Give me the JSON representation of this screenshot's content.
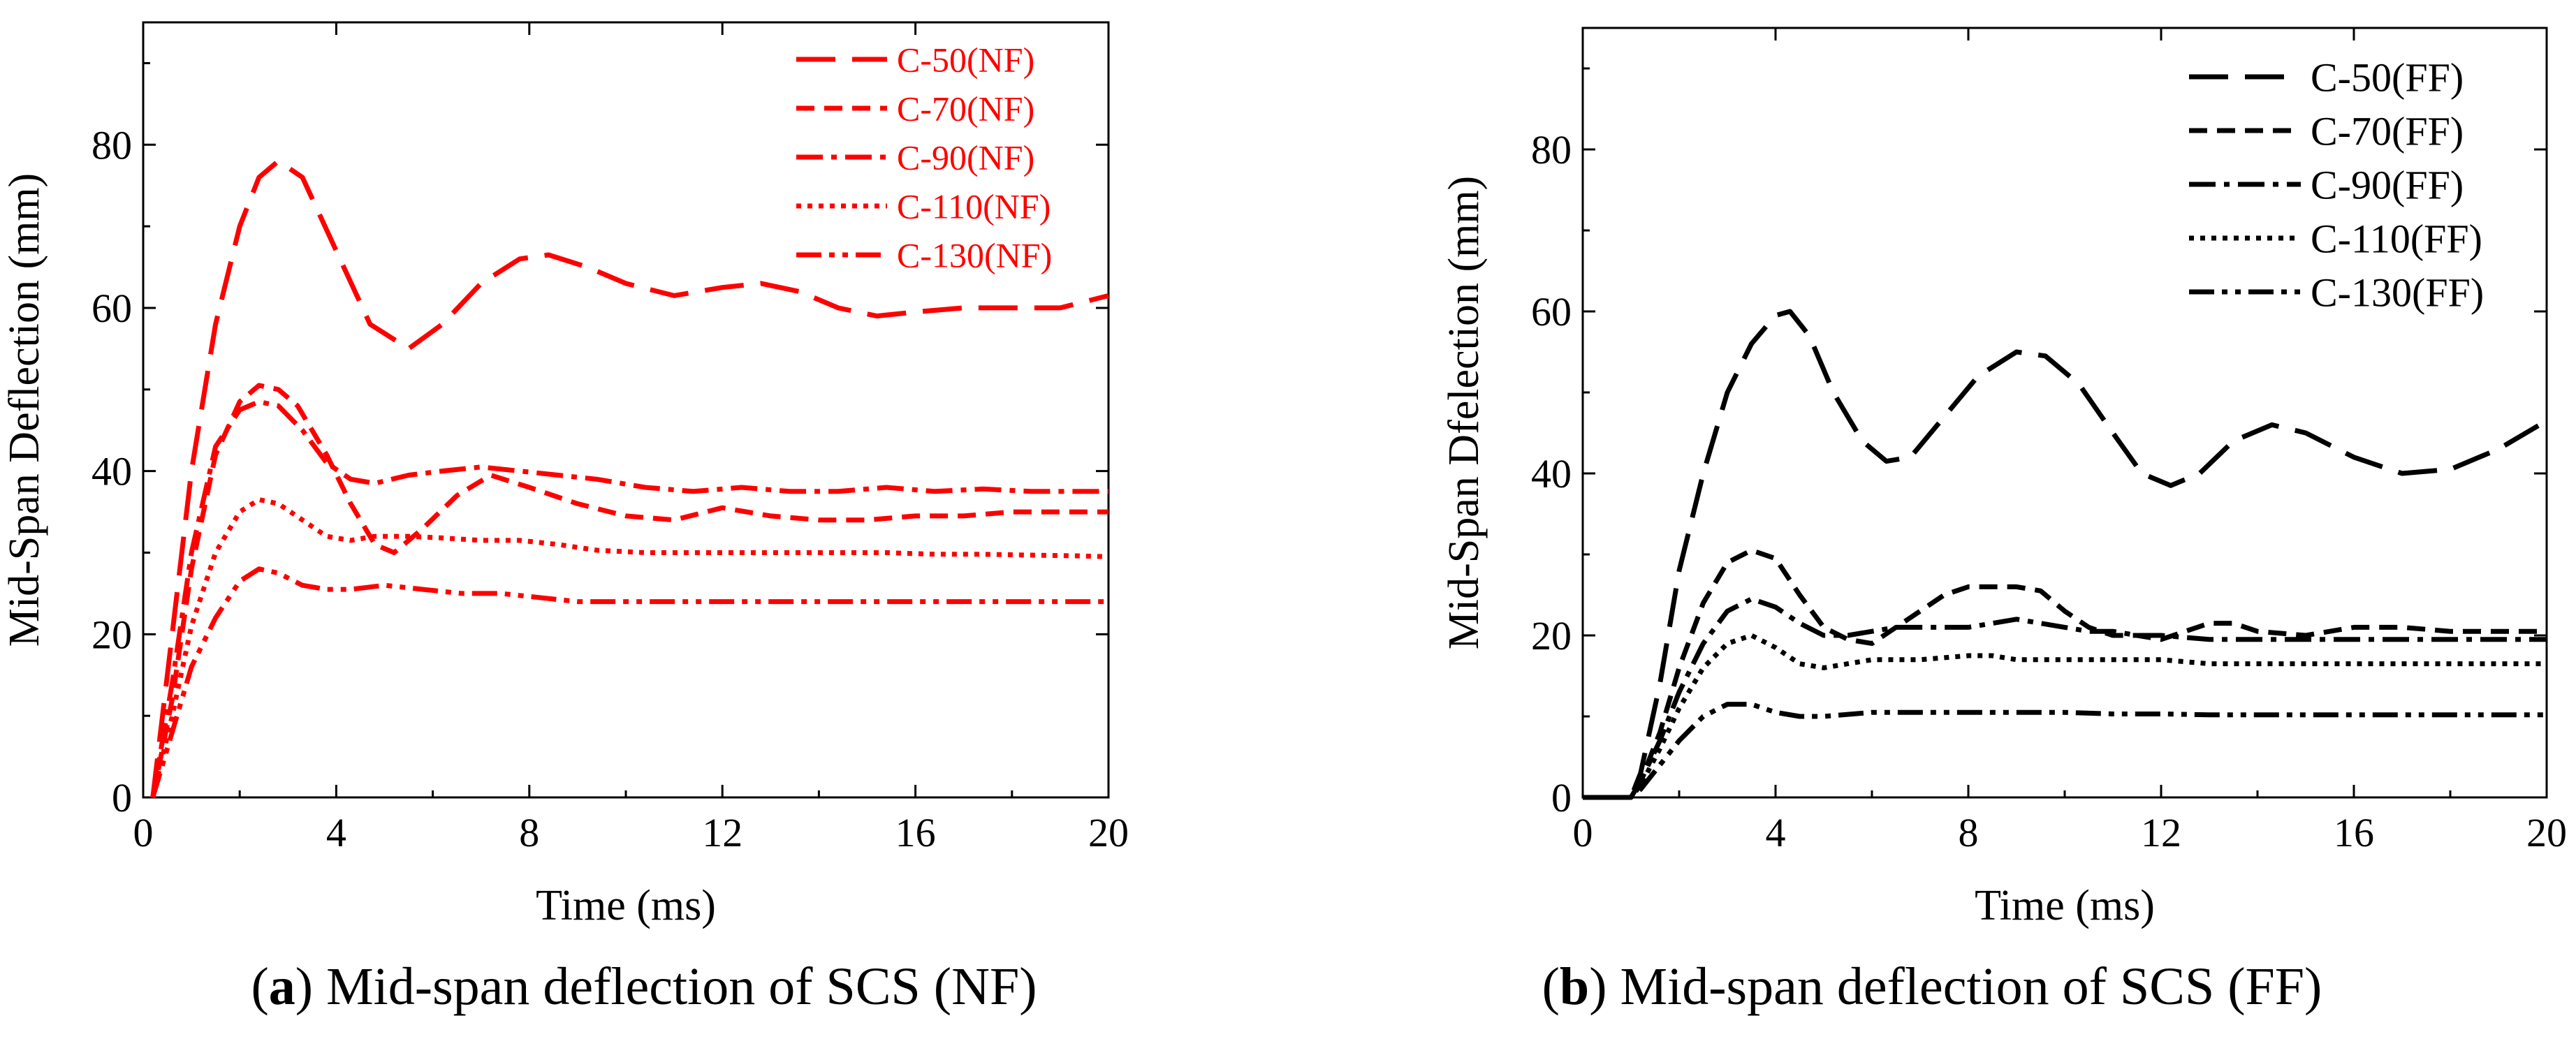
{
  "chart_data": [
    {
      "type": "line",
      "id": "a",
      "color": "#ff0000",
      "xlabel": "Time (ms)",
      "ylabel": "Mid-Span Deflection (mm)",
      "xlim": [
        0,
        20
      ],
      "ylim": [
        0,
        95
      ],
      "xticks": [
        "0",
        "4",
        "8",
        "12",
        "16",
        "20"
      ],
      "yticks": [
        "0",
        "20",
        "40",
        "60",
        "80"
      ],
      "legend_position": "top-right",
      "caption": {
        "tag": "a",
        "text": "Mid-span deflection of SCS (NF)"
      },
      "series": [
        {
          "name": "C-50(NF)",
          "style": "longdash",
          "x": [
            0.2,
            0.6,
            1.0,
            1.5,
            2.0,
            2.4,
            2.8,
            3.3,
            4.0,
            4.7,
            5.5,
            6.2,
            7.0,
            7.8,
            8.4,
            9.2,
            10.0,
            11.0,
            12.0,
            12.8,
            13.6,
            14.4,
            15.2,
            16.0,
            17.0,
            18.0,
            19.0,
            20.0
          ],
          "y": [
            0,
            20,
            40,
            58,
            70,
            76,
            78,
            76,
            67,
            58,
            55,
            58,
            63,
            66,
            66.5,
            65,
            63,
            61.5,
            62.5,
            63,
            62,
            60,
            59,
            59.5,
            60,
            60,
            60,
            61.5
          ]
        },
        {
          "name": "C-70(NF)",
          "style": "dash",
          "x": [
            0.2,
            0.6,
            1.0,
            1.5,
            2.0,
            2.4,
            2.8,
            3.2,
            3.8,
            4.3,
            4.8,
            5.2,
            5.8,
            6.5,
            7.2,
            8.0,
            9.0,
            10.0,
            11.0,
            12.0,
            13.0,
            14.0,
            15.0,
            16.0,
            17.0,
            18.0,
            19.0,
            20.0
          ],
          "y": [
            0,
            12,
            28,
            42,
            48.5,
            50.5,
            50,
            48,
            42,
            36,
            31,
            30,
            33,
            37,
            39.5,
            38,
            36,
            34.5,
            34,
            35.5,
            34.5,
            34,
            34,
            34.5,
            34.5,
            35,
            35,
            35
          ]
        },
        {
          "name": "C-90(NF)",
          "style": "dashdot",
          "x": [
            0.2,
            0.6,
            1.0,
            1.5,
            2.0,
            2.4,
            2.8,
            3.3,
            3.8,
            4.3,
            4.8,
            5.5,
            6.2,
            7.0,
            7.8,
            8.6,
            9.4,
            10.4,
            11.4,
            12.4,
            13.4,
            14.4,
            15.4,
            16.4,
            17.4,
            18.4,
            19.4,
            20.0
          ],
          "y": [
            0,
            14,
            30,
            43,
            47.5,
            48.5,
            48,
            45,
            41,
            39,
            38.5,
            39.5,
            40,
            40.5,
            40,
            39.5,
            39,
            38,
            37.5,
            38,
            37.5,
            37.5,
            38,
            37.5,
            37.8,
            37.5,
            37.5,
            37.5
          ]
        },
        {
          "name": "C-110(NF)",
          "style": "dot",
          "x": [
            0.2,
            0.6,
            1.0,
            1.5,
            2.0,
            2.4,
            2.8,
            3.3,
            3.8,
            4.3,
            4.8,
            5.5,
            6.2,
            7.0,
            7.8,
            8.6,
            9.4,
            10.4,
            11.4,
            12.4,
            13.4,
            14.4,
            15.4,
            16.4,
            17.4,
            18.4,
            19.4,
            20.0
          ],
          "y": [
            0,
            10,
            21,
            30,
            35,
            36.5,
            36,
            34,
            32,
            31.5,
            32,
            32,
            31.8,
            31.5,
            31.5,
            31,
            30.3,
            30,
            30,
            30,
            30,
            30,
            30,
            29.8,
            29.8,
            29.7,
            29.6,
            29.5
          ]
        },
        {
          "name": "C-130(NF)",
          "style": "dashdotdot",
          "x": [
            0.2,
            0.6,
            1.0,
            1.5,
            2.0,
            2.4,
            2.8,
            3.3,
            3.8,
            4.3,
            5.0,
            5.8,
            6.6,
            7.4,
            8.2,
            9.0,
            10.0,
            11.0,
            12.0,
            13.0,
            14.0,
            15.0,
            16.0,
            17.0,
            18.0,
            19.0,
            20.0
          ],
          "y": [
            0,
            8,
            16,
            22,
            26.5,
            28,
            27.5,
            26,
            25.5,
            25.5,
            26,
            25.5,
            25,
            25,
            24.5,
            24,
            24,
            24,
            24,
            24,
            24,
            24,
            24,
            24,
            24,
            24,
            24
          ]
        }
      ]
    },
    {
      "type": "line",
      "id": "b",
      "color": "#000000",
      "xlabel": "Time (ms)",
      "ylabel": "Mid-Span Dfelection (mm)",
      "xlim": [
        0,
        20
      ],
      "ylim": [
        0,
        95
      ],
      "xticks": [
        "0",
        "4",
        "8",
        "12",
        "16",
        "20"
      ],
      "yticks": [
        "0",
        "20",
        "40",
        "60",
        "80"
      ],
      "legend_position": "top-right",
      "caption": {
        "tag": "b",
        "text": "Mid-span deflection of SCS (FF)"
      },
      "series": [
        {
          "name": "C-50(FF)",
          "style": "longdash",
          "x": [
            0,
            1.0,
            1.2,
            1.6,
            2.0,
            2.5,
            3.0,
            3.5,
            4.0,
            4.3,
            4.7,
            5.2,
            5.8,
            6.3,
            6.8,
            7.5,
            8.2,
            9.0,
            9.6,
            10.3,
            11.0,
            11.6,
            12.2,
            12.8,
            13.5,
            14.3,
            15.0,
            16.0,
            17.0,
            18.0,
            19.0,
            20.0
          ],
          "y": [
            0,
            0,
            3,
            14,
            28,
            40,
            50,
            56,
            59.5,
            60,
            57,
            50,
            44,
            41.5,
            42,
            47,
            52,
            55,
            54.5,
            51,
            45,
            40,
            38.5,
            40,
            44,
            46,
            45,
            42,
            40,
            40.5,
            43,
            46.5
          ]
        },
        {
          "name": "C-70(FF)",
          "style": "dash",
          "x": [
            0,
            1.0,
            1.2,
            1.6,
            2.0,
            2.5,
            3.0,
            3.5,
            4.0,
            4.5,
            5.0,
            5.5,
            6.0,
            6.5,
            7.0,
            7.5,
            8.0,
            8.5,
            9.0,
            9.5,
            10.0,
            10.5,
            11.0,
            11.5,
            12.0,
            12.5,
            13.0,
            13.5,
            14.0,
            15.0,
            16.0,
            17.0,
            18.0,
            19.0,
            20.0
          ],
          "y": [
            0,
            0,
            2,
            8,
            16,
            24,
            29,
            30.5,
            29.5,
            25,
            21,
            19.5,
            19,
            21,
            23,
            25,
            26,
            26,
            26,
            25.5,
            23,
            21,
            20,
            20,
            19.5,
            20.5,
            21.5,
            21.5,
            20.5,
            20,
            21,
            21,
            20.5,
            20.5,
            20.5
          ]
        },
        {
          "name": "C-90(FF)",
          "style": "dashdot",
          "x": [
            0,
            1.0,
            1.2,
            1.6,
            2.0,
            2.5,
            3.0,
            3.5,
            4.0,
            4.5,
            5.0,
            5.5,
            6.0,
            6.5,
            7.0,
            7.5,
            8.0,
            8.5,
            9.0,
            9.5,
            10.0,
            10.5,
            11.0,
            11.5,
            12.0,
            13.0,
            14.0,
            15.0,
            16.0,
            17.0,
            18.0,
            19.0,
            20.0
          ],
          "y": [
            0,
            0,
            2,
            7,
            13,
            19,
            23,
            24.5,
            23.5,
            21.5,
            20,
            20,
            20.5,
            21,
            21,
            21,
            21,
            21.5,
            22,
            21.5,
            21,
            20.5,
            20.5,
            20,
            20,
            19.5,
            19.5,
            19.5,
            19.5,
            19.5,
            19.5,
            19.5,
            19.5
          ]
        },
        {
          "name": "C-110(FF)",
          "style": "dot",
          "x": [
            0,
            1.0,
            1.2,
            1.6,
            2.0,
            2.5,
            3.0,
            3.5,
            4.0,
            4.5,
            5.0,
            5.5,
            6.0,
            7.0,
            8.0,
            8.5,
            9.0,
            10.0,
            11.0,
            12.0,
            13.0,
            14.0,
            15.0,
            16.0,
            17.0,
            18.0,
            19.0,
            20.0
          ],
          "y": [
            0,
            0,
            1.5,
            6,
            11,
            16,
            19,
            20,
            18.5,
            16.5,
            16,
            16.5,
            17,
            17,
            17.5,
            17.5,
            17,
            17,
            17,
            17,
            16.5,
            16.5,
            16.5,
            16.5,
            16.5,
            16.5,
            16.5,
            16.5
          ]
        },
        {
          "name": "C-130(FF)",
          "style": "dashdotdot",
          "x": [
            0,
            1.0,
            1.2,
            1.6,
            2.0,
            2.5,
            3.0,
            3.5,
            4.0,
            4.5,
            5.0,
            6.0,
            7.0,
            8.0,
            9.0,
            10.0,
            11.0,
            12.0,
            13.0,
            14.0,
            15.0,
            16.0,
            17.0,
            18.0,
            19.0,
            20.0
          ],
          "y": [
            0,
            0,
            1,
            4,
            7,
            10,
            11.5,
            11.5,
            10.5,
            10,
            10,
            10.5,
            10.5,
            10.5,
            10.5,
            10.5,
            10.3,
            10.3,
            10.2,
            10.2,
            10.2,
            10.2,
            10.2,
            10.2,
            10.2,
            10.2
          ]
        }
      ]
    }
  ]
}
